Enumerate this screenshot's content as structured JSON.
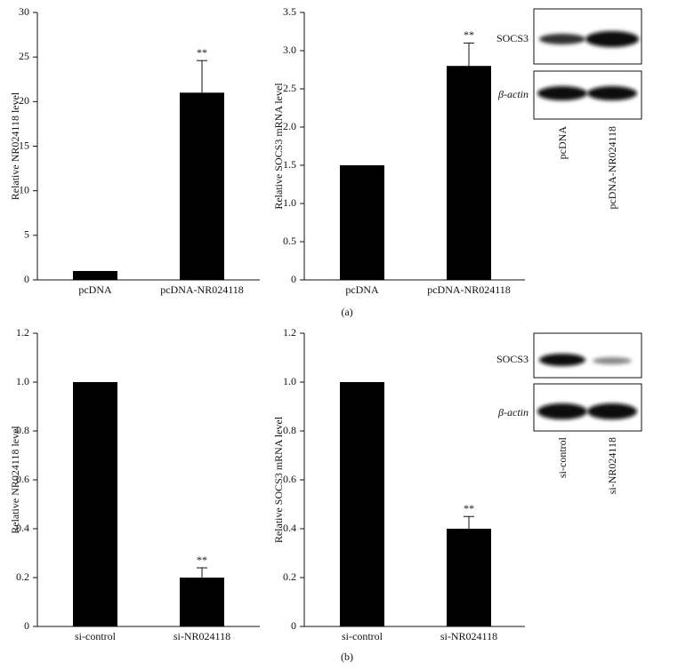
{
  "chart_data": [
    {
      "type": "bar",
      "ylabel": "Relative NR024118 level",
      "categories": [
        "pcDNA",
        "pcDNA-NR024118"
      ],
      "values": [
        1.0,
        21
      ],
      "errors": [
        null,
        3.6
      ],
      "value_annotations": [
        null,
        "**"
      ],
      "color": "#000000",
      "ylim": [
        0,
        30
      ],
      "yticks": [
        0,
        5,
        10,
        15,
        20,
        25,
        30
      ]
    },
    {
      "type": "bar",
      "ylabel": "Relative SOCS3 mRNA level",
      "categories": [
        "pcDNA",
        "pcDNA-NR024118"
      ],
      "values": [
        1.5,
        2.8
      ],
      "errors": [
        null,
        0.3
      ],
      "value_annotations": [
        null,
        "**"
      ],
      "color": "#000000",
      "ylim": [
        0,
        3.5
      ],
      "yticks": [
        0,
        0.5,
        {
          "value": 1,
          "label": "1.0"
        },
        1.5,
        {
          "value": 2,
          "label": "2.0"
        },
        2.5,
        {
          "value": 3,
          "label": "3.0"
        },
        3.5
      ]
    },
    {
      "type": "bar",
      "ylabel": "Relative NR024118 level",
      "categories": [
        "si-control",
        "si-NR024118"
      ],
      "values": [
        1.0,
        0.2
      ],
      "errors": [
        null,
        0.04
      ],
      "value_annotations": [
        null,
        "**"
      ],
      "color": "#000000",
      "ylim": [
        0,
        1.2
      ],
      "yticks": [
        0,
        0.2,
        0.4,
        0.6,
        0.8,
        {
          "value": 1,
          "label": "1.0"
        },
        1.2
      ]
    },
    {
      "type": "bar",
      "ylabel": "Relative SOCS3 mRNA level",
      "categories": [
        "si-control",
        "si-NR024118"
      ],
      "values": [
        1.0,
        0.4
      ],
      "errors": [
        null,
        0.05
      ],
      "value_annotations": [
        null,
        "**"
      ],
      "color": "#000000",
      "ylim": [
        0,
        1.2
      ],
      "yticks": [
        0,
        0.2,
        0.4,
        0.6,
        0.8,
        {
          "value": 1,
          "label": "1.0"
        },
        1.2
      ]
    }
  ],
  "captions": [
    "(a)",
    "(b)"
  ],
  "blots": [
    {
      "rows": [
        "SOCS3",
        "β-actin"
      ],
      "lanes": [
        "pcDNA",
        "pcDNA-NR024118"
      ]
    },
    {
      "rows": [
        "SOCS3",
        "β-actin"
      ],
      "lanes": [
        "si-control",
        "si-NR024118"
      ]
    }
  ]
}
